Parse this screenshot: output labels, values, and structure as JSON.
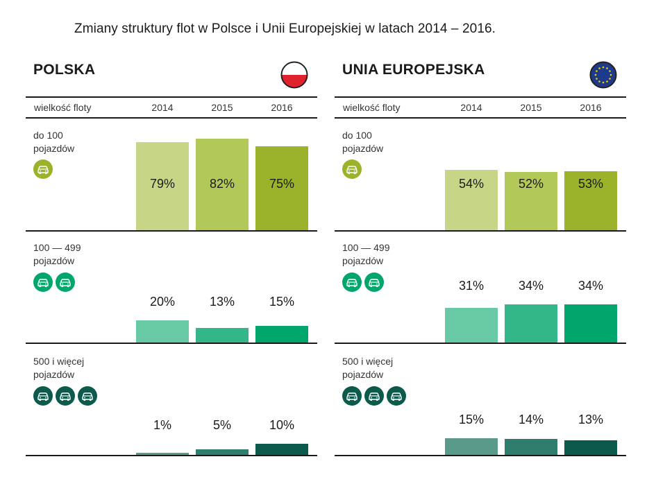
{
  "title": "Zmiany struktury flot w Polsce i Unii Europejskiej w latach 2014 – 2016.",
  "header_label": "wielkość floty",
  "years": [
    "2014",
    "2015",
    "2016"
  ],
  "panels": [
    {
      "name": "POLSKA",
      "flag": "poland-flag",
      "groups": [
        {
          "label_lines": [
            "do 100",
            "pojazdów"
          ],
          "icon_count": 1,
          "values_text": [
            "79%",
            "82%",
            "75%"
          ]
        },
        {
          "label_lines": [
            "100 — 499",
            "pojazdów"
          ],
          "icon_count": 2,
          "values_text": [
            "20%",
            "13%",
            "15%"
          ]
        },
        {
          "label_lines": [
            "500 i więcej",
            "pojazdów"
          ],
          "icon_count": 3,
          "values_text": [
            "1%",
            "5%",
            "10%"
          ]
        }
      ]
    },
    {
      "name": "UNIA EUROPEJSKA",
      "flag": "eu-flag",
      "groups": [
        {
          "label_lines": [
            "do 100",
            "pojazdów"
          ],
          "icon_count": 1,
          "values_text": [
            "54%",
            "52%",
            "53%"
          ]
        },
        {
          "label_lines": [
            "100 — 499",
            "pojazdów"
          ],
          "icon_count": 2,
          "values_text": [
            "31%",
            "34%",
            "34%"
          ]
        },
        {
          "label_lines": [
            "500 i więcej",
            "pojazdów"
          ],
          "icon_count": 3,
          "values_text": [
            "15%",
            "14%",
            "13%"
          ]
        }
      ]
    }
  ],
  "colors": {
    "group_1": [
      "#c6d686",
      "#b2c95a",
      "#9ab32a"
    ],
    "group_2": [
      "#67caa4",
      "#33b788",
      "#00a66c"
    ],
    "group_3": [
      "#5a9a8a",
      "#2f7d6d",
      "#0b5a4b"
    ],
    "icon_bg": [
      "#9ab32a",
      "#00a66c",
      "#0b5a4b"
    ],
    "poland_red": "#e0212e",
    "eu_blue": "#1e3a8a",
    "eu_star": "#f5d000"
  },
  "chart_data": [
    {
      "type": "bar",
      "title": "POLSKA",
      "categories": [
        "2014",
        "2015",
        "2016"
      ],
      "series": [
        {
          "name": "do 100 pojazdów",
          "values": [
            79,
            82,
            75
          ]
        },
        {
          "name": "100 — 499 pojazdów",
          "values": [
            20,
            13,
            15
          ]
        },
        {
          "name": "500 i więcej pojazdów",
          "values": [
            1,
            5,
            10
          ]
        }
      ]
    },
    {
      "type": "bar",
      "title": "UNIA EUROPEJSKA",
      "categories": [
        "2014",
        "2015",
        "2016"
      ],
      "series": [
        {
          "name": "do 100 pojazdów",
          "values": [
            54,
            52,
            53
          ]
        },
        {
          "name": "100 — 499 pojazdów",
          "values": [
            31,
            34,
            34
          ]
        },
        {
          "name": "500 i więcej pojazdów",
          "values": [
            15,
            14,
            13
          ]
        }
      ]
    }
  ]
}
